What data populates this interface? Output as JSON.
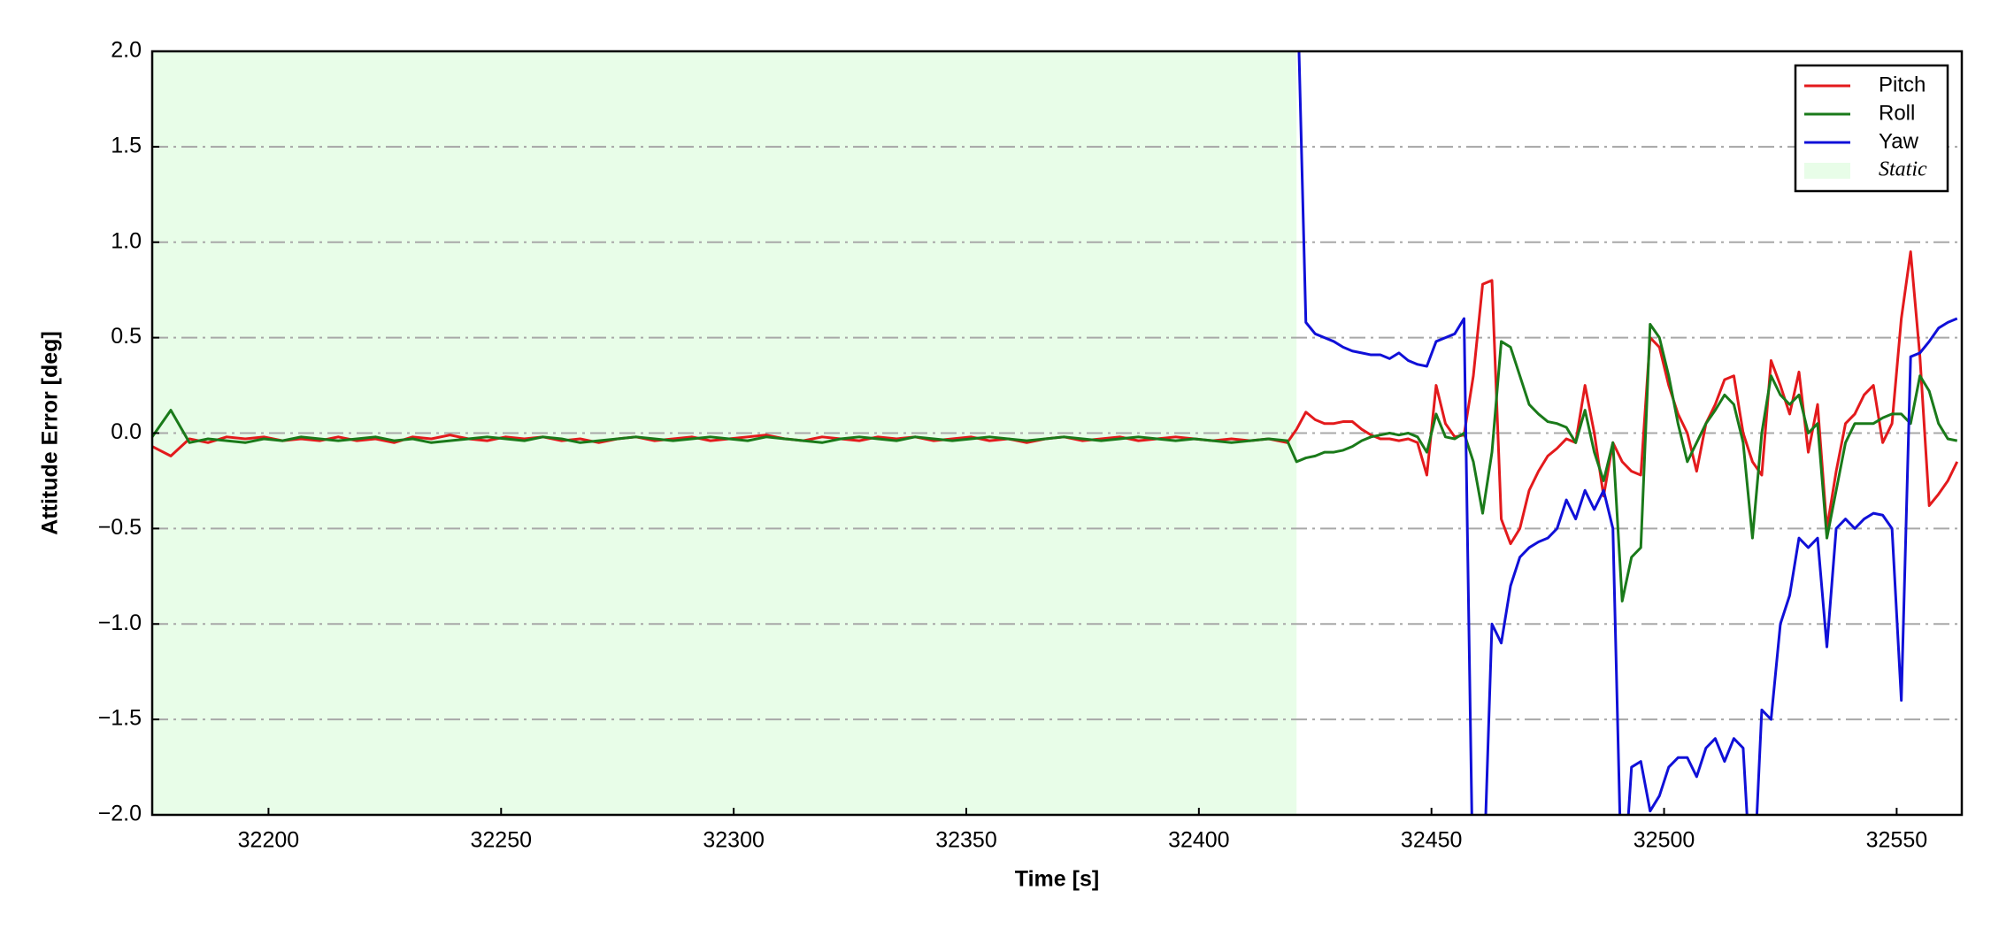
{
  "chart_data": {
    "type": "line",
    "xlabel": "Time [s]",
    "ylabel": "Attitude Error [deg]",
    "xlim": [
      32175,
      32564
    ],
    "ylim": [
      -2.0,
      2.0
    ],
    "xticks": [
      32200,
      32250,
      32300,
      32350,
      32400,
      32450,
      32500,
      32550
    ],
    "yticks": [
      {
        "value": -2.0,
        "label": "−2.0"
      },
      {
        "value": -1.5,
        "label": "−1.5"
      },
      {
        "value": -1.0,
        "label": "−1.0"
      },
      {
        "value": -0.5,
        "label": "−0.5"
      },
      {
        "value": 0.0,
        "label": "0.0"
      },
      {
        "value": 0.5,
        "label": "0.5"
      },
      {
        "value": 1.0,
        "label": "1.0"
      },
      {
        "value": 1.5,
        "label": "1.5"
      },
      {
        "value": 2.0,
        "label": "2.0"
      }
    ],
    "grid": true,
    "legend": "upper right",
    "shaded": {
      "label": "Static",
      "start": 32175,
      "end": 32421,
      "color": "#e8fde8"
    },
    "x": [
      32175,
      32179,
      32183,
      32187,
      32191,
      32195,
      32199,
      32203,
      32207,
      32211,
      32215,
      32219,
      32223,
      32227,
      32231,
      32235,
      32239,
      32243,
      32247,
      32251,
      32255,
      32259,
      32263,
      32267,
      32271,
      32275,
      32279,
      32283,
      32287,
      32291,
      32295,
      32299,
      32303,
      32307,
      32311,
      32315,
      32319,
      32323,
      32327,
      32331,
      32335,
      32339,
      32343,
      32347,
      32351,
      32355,
      32359,
      32363,
      32367,
      32371,
      32375,
      32379,
      32383,
      32387,
      32391,
      32395,
      32399,
      32403,
      32407,
      32411,
      32415,
      32419,
      32421,
      32423,
      32425,
      32427,
      32429,
      32431,
      32433,
      32435,
      32437,
      32439,
      32441,
      32443,
      32445,
      32447,
      32449,
      32451,
      32453,
      32455,
      32457,
      32459,
      32461,
      32463,
      32465,
      32467,
      32469,
      32471,
      32473,
      32475,
      32477,
      32479,
      32481,
      32483,
      32485,
      32487,
      32489,
      32491,
      32493,
      32495,
      32497,
      32499,
      32501,
      32503,
      32505,
      32507,
      32509,
      32511,
      32513,
      32515,
      32517,
      32519,
      32521,
      32523,
      32525,
      32527,
      32529,
      32531,
      32533,
      32535,
      32537,
      32539,
      32541,
      32543,
      32545,
      32547,
      32549,
      32551,
      32553,
      32555,
      32557,
      32559,
      32561,
      32563
    ],
    "series": [
      {
        "name": "Pitch",
        "color": "#e31a1c",
        "values": [
          -0.07,
          -0.12,
          -0.03,
          -0.05,
          -0.02,
          -0.03,
          -0.02,
          -0.04,
          -0.03,
          -0.04,
          -0.02,
          -0.04,
          -0.03,
          -0.05,
          -0.02,
          -0.03,
          -0.01,
          -0.03,
          -0.04,
          -0.02,
          -0.03,
          -0.02,
          -0.04,
          -0.03,
          -0.05,
          -0.03,
          -0.02,
          -0.04,
          -0.03,
          -0.02,
          -0.04,
          -0.03,
          -0.02,
          -0.01,
          -0.03,
          -0.04,
          -0.02,
          -0.03,
          -0.04,
          -0.02,
          -0.03,
          -0.02,
          -0.04,
          -0.03,
          -0.02,
          -0.04,
          -0.03,
          -0.05,
          -0.03,
          -0.02,
          -0.04,
          -0.03,
          -0.02,
          -0.04,
          -0.03,
          -0.02,
          -0.03,
          -0.04,
          -0.03,
          -0.04,
          -0.03,
          -0.05,
          0.02,
          0.11,
          0.07,
          0.05,
          0.05,
          0.06,
          0.06,
          0.02,
          -0.01,
          -0.03,
          -0.03,
          -0.04,
          -0.03,
          -0.05,
          -0.22,
          0.25,
          0.05,
          -0.02,
          -0.01,
          0.3,
          0.78,
          0.8,
          -0.45,
          -0.58,
          -0.5,
          -0.3,
          -0.2,
          -0.12,
          -0.08,
          -0.03,
          -0.05,
          0.25,
          0.0,
          -0.33,
          -0.05,
          -0.15,
          -0.2,
          -0.22,
          0.5,
          0.45,
          0.25,
          0.1,
          0.0,
          -0.2,
          0.05,
          0.15,
          0.28,
          0.3,
          0.0,
          -0.15,
          -0.22,
          0.38,
          0.25,
          0.1,
          0.32,
          -0.1,
          0.15,
          -0.5,
          -0.2,
          0.05,
          0.1,
          0.2,
          0.25,
          -0.05,
          0.05,
          0.6,
          0.95,
          0.4,
          -0.38,
          -0.32,
          -0.25,
          -0.15
        ]
      },
      {
        "name": "Roll",
        "color": "#1a7a1a",
        "values": [
          -0.02,
          0.12,
          -0.05,
          -0.03,
          -0.04,
          -0.05,
          -0.03,
          -0.04,
          -0.02,
          -0.03,
          -0.04,
          -0.03,
          -0.02,
          -0.04,
          -0.03,
          -0.05,
          -0.04,
          -0.03,
          -0.02,
          -0.03,
          -0.04,
          -0.02,
          -0.03,
          -0.05,
          -0.04,
          -0.03,
          -0.02,
          -0.03,
          -0.04,
          -0.03,
          -0.02,
          -0.03,
          -0.04,
          -0.02,
          -0.03,
          -0.04,
          -0.05,
          -0.03,
          -0.02,
          -0.03,
          -0.04,
          -0.02,
          -0.03,
          -0.04,
          -0.03,
          -0.02,
          -0.03,
          -0.04,
          -0.03,
          -0.02,
          -0.03,
          -0.04,
          -0.03,
          -0.02,
          -0.03,
          -0.04,
          -0.03,
          -0.04,
          -0.05,
          -0.04,
          -0.03,
          -0.04,
          -0.15,
          -0.13,
          -0.12,
          -0.1,
          -0.1,
          -0.09,
          -0.07,
          -0.04,
          -0.02,
          -0.01,
          0.0,
          -0.01,
          0.0,
          -0.02,
          -0.1,
          0.1,
          -0.02,
          -0.03,
          0.0,
          -0.15,
          -0.42,
          -0.1,
          0.48,
          0.45,
          0.3,
          0.15,
          0.1,
          0.06,
          0.05,
          0.03,
          -0.05,
          0.12,
          -0.1,
          -0.25,
          -0.05,
          -0.88,
          -0.65,
          -0.6,
          0.57,
          0.5,
          0.3,
          0.05,
          -0.15,
          -0.05,
          0.05,
          0.12,
          0.2,
          0.15,
          -0.05,
          -0.55,
          0.0,
          0.3,
          0.2,
          0.15,
          0.2,
          0.0,
          0.05,
          -0.55,
          -0.3,
          -0.05,
          0.05,
          0.05,
          0.05,
          0.08,
          0.1,
          0.1,
          0.05,
          0.3,
          0.22,
          0.05,
          -0.03,
          -0.04
        ]
      },
      {
        "name": "Yaw",
        "color": "#1010d8",
        "values": [
          null,
          null,
          null,
          null,
          null,
          null,
          null,
          null,
          null,
          null,
          null,
          null,
          null,
          null,
          null,
          null,
          null,
          null,
          null,
          null,
          null,
          null,
          null,
          null,
          null,
          null,
          null,
          null,
          null,
          null,
          null,
          null,
          null,
          null,
          null,
          null,
          null,
          null,
          null,
          null,
          null,
          null,
          null,
          null,
          null,
          null,
          null,
          null,
          null,
          null,
          null,
          null,
          null,
          null,
          null,
          null,
          null,
          null,
          null,
          null,
          null,
          null,
          2.5,
          0.58,
          0.52,
          0.5,
          0.48,
          0.45,
          0.43,
          0.42,
          0.41,
          0.41,
          0.39,
          0.42,
          0.38,
          0.36,
          0.35,
          0.48,
          0.5,
          0.52,
          0.6,
          -2.5,
          -2.5,
          -1.0,
          -1.1,
          -0.8,
          -0.65,
          -0.6,
          -0.57,
          -0.55,
          -0.5,
          -0.35,
          -0.45,
          -0.3,
          -0.4,
          -0.3,
          -0.5,
          -2.5,
          -1.75,
          -1.72,
          -1.98,
          -1.9,
          -1.75,
          -1.7,
          -1.7,
          -1.8,
          -1.65,
          -1.6,
          -1.72,
          -1.6,
          -1.65,
          -2.5,
          -1.45,
          -1.5,
          -1.0,
          -0.85,
          -0.55,
          -0.6,
          -0.55,
          -1.12,
          -0.5,
          -0.45,
          -0.5,
          -0.45,
          -0.42,
          -0.43,
          -0.5,
          -1.4,
          0.4,
          0.42,
          0.48,
          0.55,
          0.58,
          0.6
        ]
      }
    ]
  }
}
